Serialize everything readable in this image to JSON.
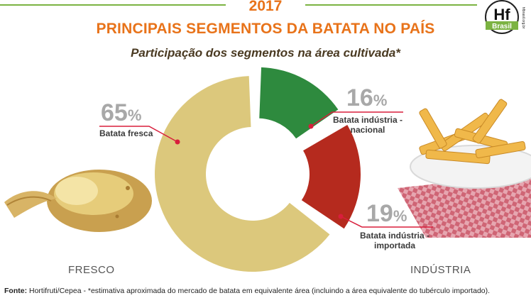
{
  "header": {
    "year": "2017",
    "title": "PRINCIPAIS SEGMENTOS DA BATATA NO PAÍS",
    "subtitle": "Participação dos segmentos na área cultivada*"
  },
  "logo": {
    "text": "Hf",
    "brand": "Brasil",
    "site": "hfbrasil.org.br"
  },
  "categories": {
    "left": "FRESCO",
    "right": "INDÚSTRIA"
  },
  "source": {
    "label": "Fonte:",
    "text": "Hortifruti/Cepea - *estimativa aproximada do mercado de batata em equivalente área (incluindo a área equivalente do tubérculo importado)."
  },
  "chart_data": {
    "type": "pie",
    "title": "PRINCIPAIS SEGMENTOS DA BATATA NO PAÍS",
    "subtitle": "Participação dos segmentos na área cultivada*",
    "unit": "%",
    "slices": [
      {
        "label": "Batata fresca",
        "value": 65,
        "display": "65",
        "color": "#dcc87c"
      },
      {
        "label": "Batata indústria - nacional",
        "value": 16,
        "display": "16",
        "color": "#2e8a3e"
      },
      {
        "label": "Batata indústria - importada",
        "value": 19,
        "display": "19",
        "color": "#b52a1e"
      }
    ]
  },
  "colors": {
    "accent": "#e8731a",
    "leader": "#d81e3c",
    "text_dark": "#4a3a22"
  },
  "icons": [
    "potato-illustration",
    "fries-illustration"
  ]
}
